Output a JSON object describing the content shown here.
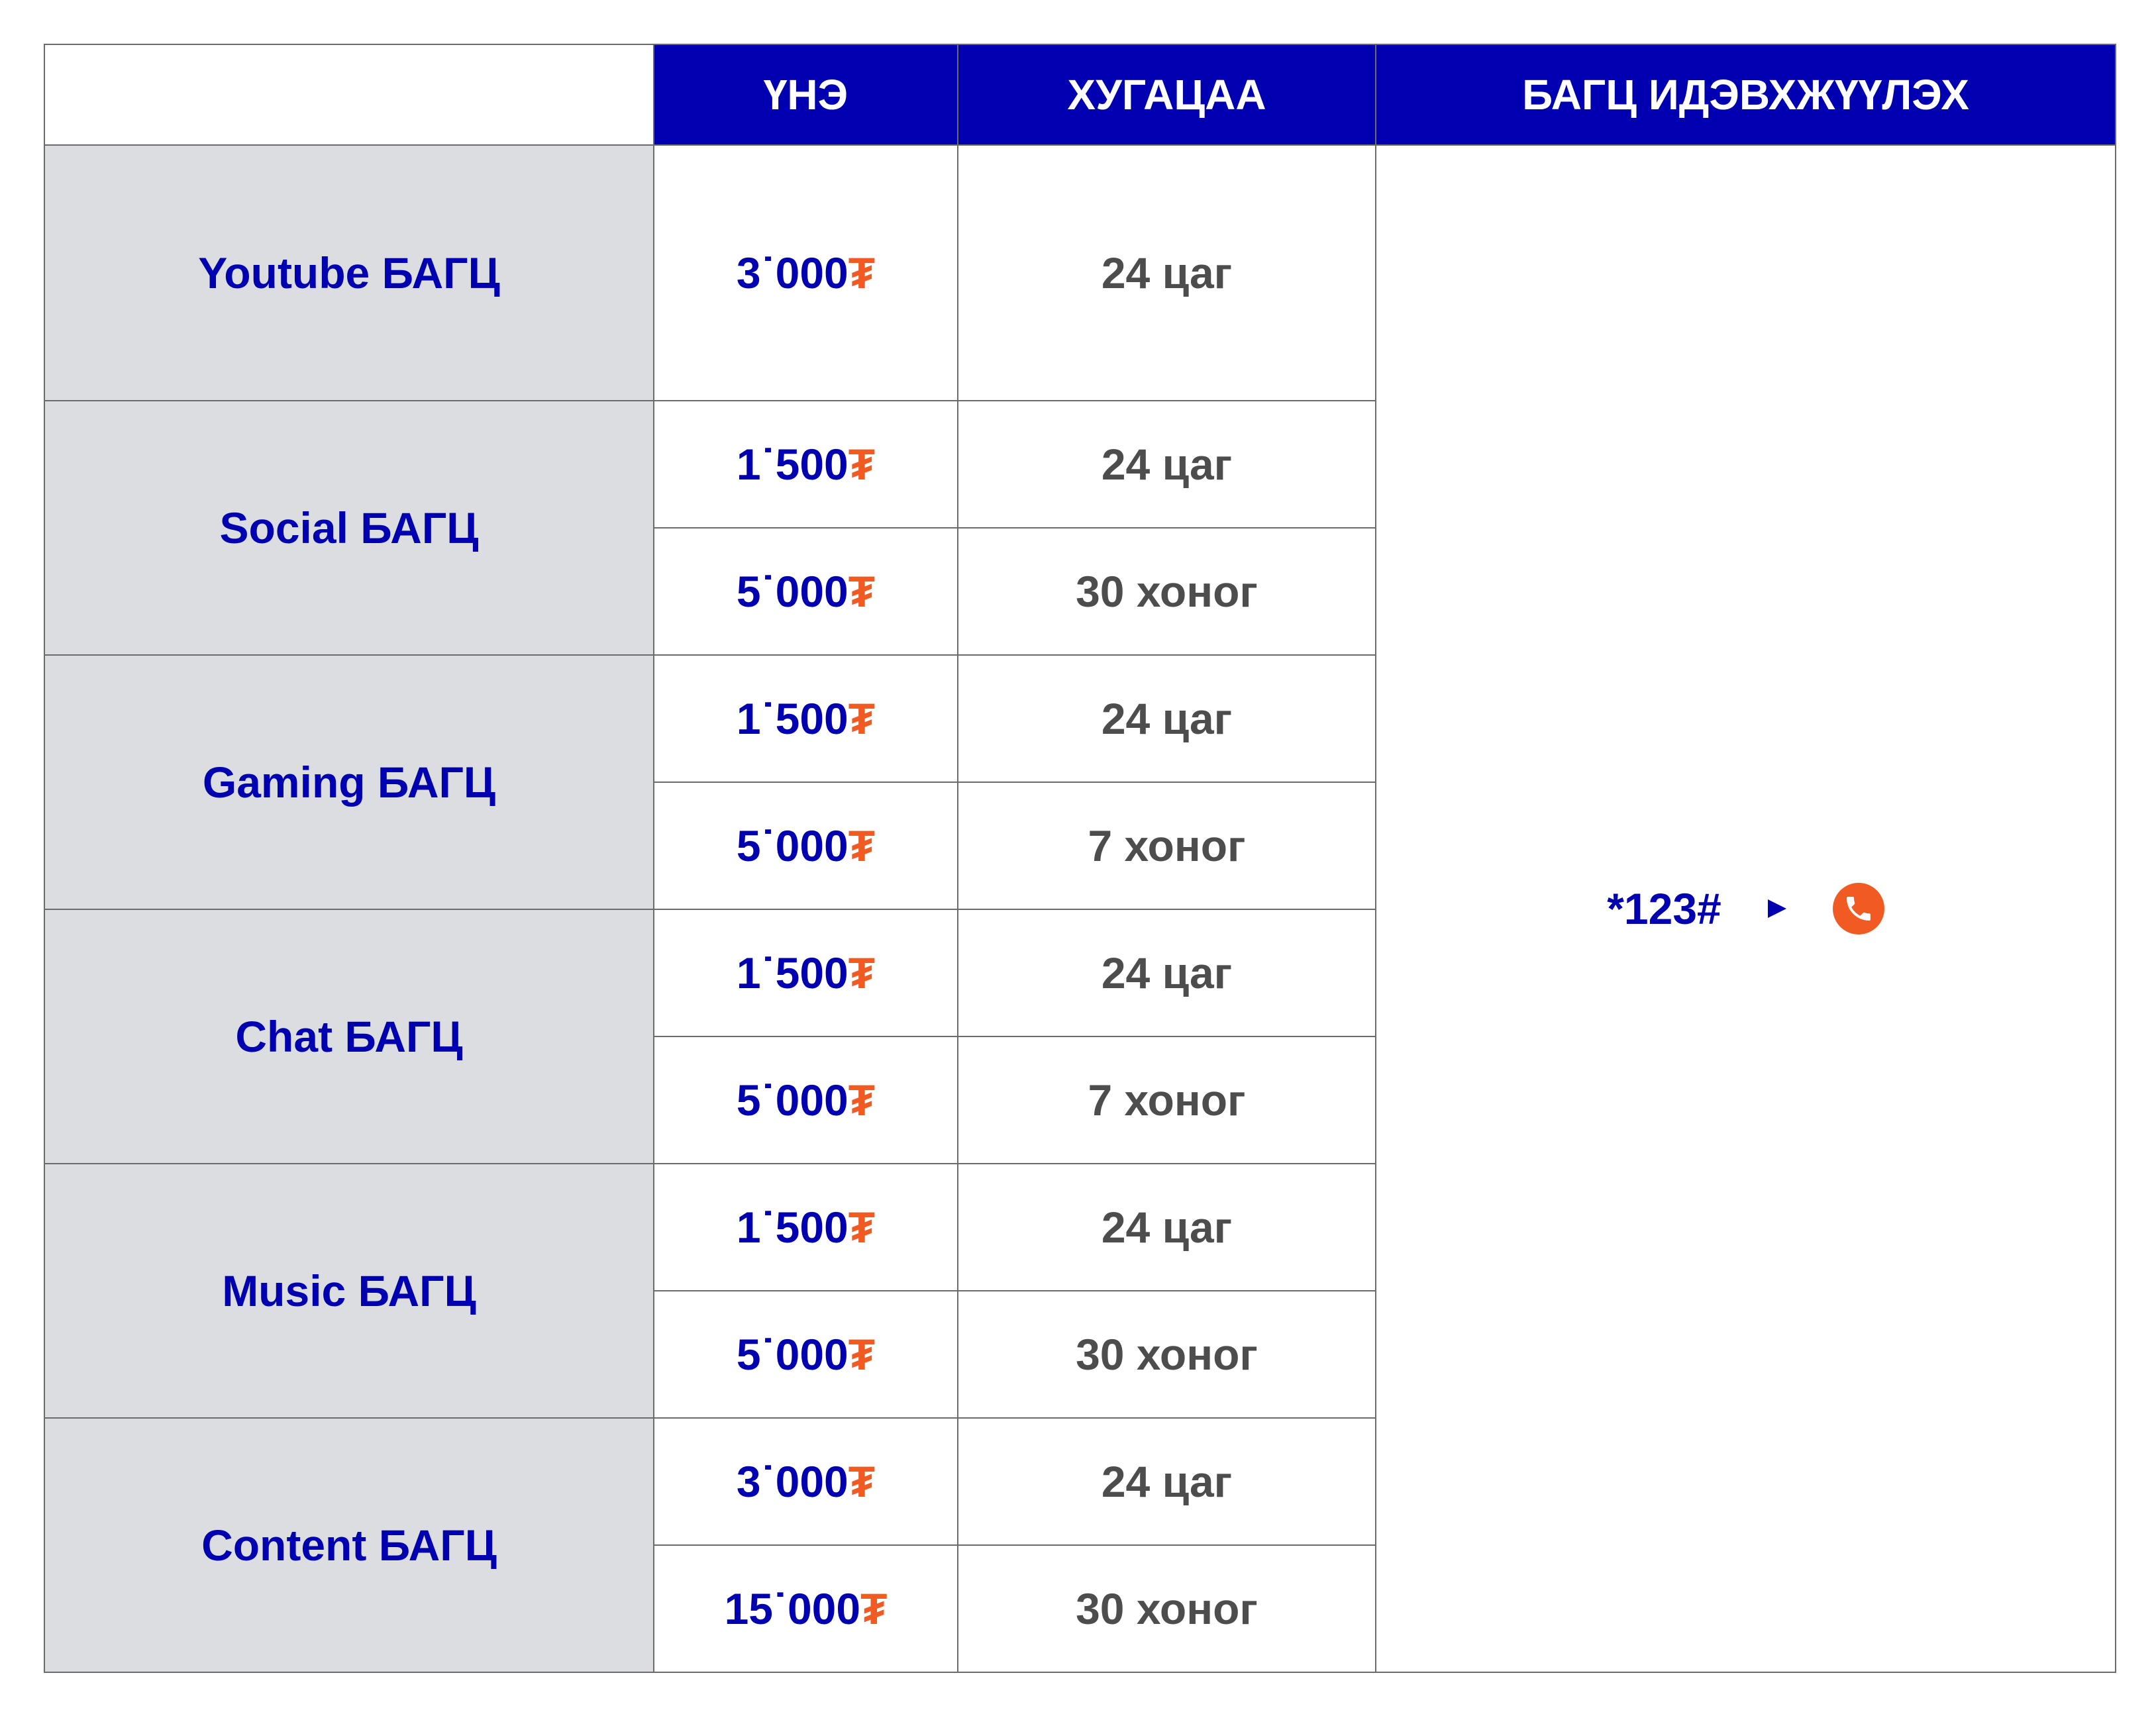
{
  "header": {
    "price": "ҮНЭ",
    "duration": "ХУГАЦАА",
    "activate": "БАГЦ ИДЭВХЖҮҮЛЭХ"
  },
  "activation": {
    "code": "*123#",
    "arrow_icon": "play-triangle",
    "call_icon": "phone-circle"
  },
  "colors": {
    "header_bg": "#0000b0",
    "accent_text": "#0000b0",
    "currency": "#f15a22",
    "package_bg": "#dcdde0",
    "duration_text": "#4d4d4d"
  },
  "packages": [
    {
      "name": "Youtube БАГЦ",
      "options": [
        {
          "price": "3˙000",
          "currency": "₮",
          "duration": "24 цаг"
        }
      ]
    },
    {
      "name": "Social БАГЦ",
      "options": [
        {
          "price": "1˙500",
          "currency": "₮",
          "duration": "24 цаг"
        },
        {
          "price": "5˙000",
          "currency": "₮",
          "duration": "30 хоног"
        }
      ]
    },
    {
      "name": "Gaming БАГЦ",
      "options": [
        {
          "price": "1˙500",
          "currency": "₮",
          "duration": "24 цаг"
        },
        {
          "price": "5˙000",
          "currency": "₮",
          "duration": "7 хоног"
        }
      ]
    },
    {
      "name": "Chat БАГЦ",
      "options": [
        {
          "price": "1˙500",
          "currency": "₮",
          "duration": "24 цаг"
        },
        {
          "price": "5˙000",
          "currency": "₮",
          "duration": "7 хоног"
        }
      ]
    },
    {
      "name": "Music БАГЦ",
      "options": [
        {
          "price": "1˙500",
          "currency": "₮",
          "duration": "24 цаг"
        },
        {
          "price": "5˙000",
          "currency": "₮",
          "duration": "30 хоног"
        }
      ]
    },
    {
      "name": "Content БАГЦ",
      "options": [
        {
          "price": "3˙000",
          "currency": "₮",
          "duration": "24 цаг"
        },
        {
          "price": "15˙000",
          "currency": "₮",
          "duration": "30 хоног"
        }
      ]
    }
  ]
}
